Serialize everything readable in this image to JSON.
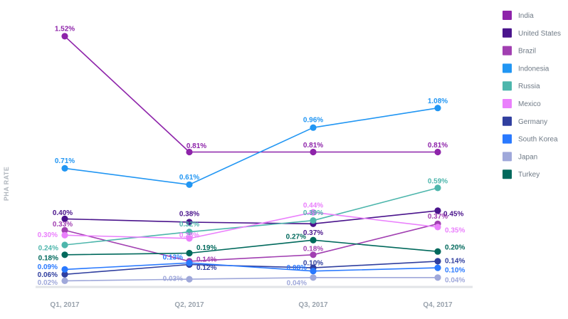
{
  "chart_data": {
    "type": "line",
    "title": "",
    "xlabel": "",
    "ylabel": "PHA RATE",
    "categories": [
      "Q1, 2017",
      "Q2, 2017",
      "Q3, 2017",
      "Q4, 2017"
    ],
    "ylim": [
      0,
      1.6
    ],
    "grid": false,
    "legend_position": "right",
    "series": [
      {
        "name": "India",
        "color": "#8e24aa",
        "values": [
          1.52,
          0.81,
          0.81,
          0.81
        ],
        "labels": [
          "1.52%",
          "0.81%",
          "0.81%",
          "0.81%"
        ]
      },
      {
        "name": "United States",
        "color": "#4a148c",
        "values": [
          0.4,
          0.38,
          0.37,
          0.45
        ],
        "labels": [
          "0.40%",
          "0.38%",
          "0.37%",
          "0.45%"
        ]
      },
      {
        "name": "Brazil",
        "color": "#a13fb1",
        "values": [
          0.33,
          0.14,
          0.18,
          0.37
        ],
        "labels": [
          "0.33%",
          "0.14%",
          "0.18%",
          "0.37%"
        ]
      },
      {
        "name": "Indonesia",
        "color": "#2196f3",
        "values": [
          0.71,
          0.61,
          0.96,
          1.08
        ],
        "labels": [
          "0.71%",
          "0.61%",
          "0.96%",
          "1.08%"
        ]
      },
      {
        "name": "Russia",
        "color": "#4db6ac",
        "values": [
          0.24,
          0.32,
          0.39,
          0.59
        ],
        "labels": [
          "0.24%",
          "0.32%",
          "0.39%",
          "0.59%"
        ]
      },
      {
        "name": "Mexico",
        "color": "#ea80fc",
        "values": [
          0.3,
          0.28,
          0.44,
          0.35
        ],
        "labels": [
          "0.30%",
          "0.28%",
          "0.44%",
          "0.35%"
        ]
      },
      {
        "name": "Germany",
        "color": "#303f9f",
        "values": [
          0.06,
          0.12,
          0.1,
          0.14
        ],
        "labels": [
          "0.06%",
          "0.12%",
          "0.10%",
          "0.14%"
        ]
      },
      {
        "name": "South Korea",
        "color": "#2979ff",
        "values": [
          0.09,
          0.13,
          0.08,
          0.1
        ],
        "labels": [
          "0.09%",
          "0.13%",
          "0.08%",
          "0.10%"
        ]
      },
      {
        "name": "Japan",
        "color": "#9fa8da",
        "values": [
          0.02,
          0.03,
          0.04,
          0.04
        ],
        "labels": [
          "0.02%",
          "0.03%",
          "0.04%",
          "0.04%"
        ]
      },
      {
        "name": "Turkey",
        "color": "#00695c",
        "values": [
          0.18,
          0.19,
          0.27,
          0.2
        ],
        "labels": [
          "0.18%",
          "0.19%",
          "0.27%",
          "0.20%"
        ]
      }
    ]
  }
}
